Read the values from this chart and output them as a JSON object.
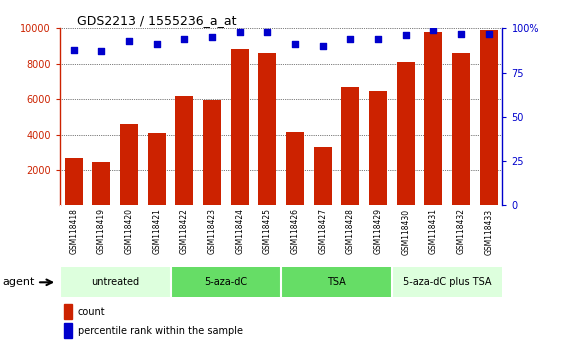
{
  "title": "GDS2213 / 1555236_a_at",
  "samples": [
    "GSM118418",
    "GSM118419",
    "GSM118420",
    "GSM118421",
    "GSM118422",
    "GSM118423",
    "GSM118424",
    "GSM118425",
    "GSM118426",
    "GSM118427",
    "GSM118428",
    "GSM118429",
    "GSM118430",
    "GSM118431",
    "GSM118432",
    "GSM118433"
  ],
  "counts": [
    2650,
    2450,
    4600,
    4100,
    6200,
    5950,
    8850,
    8600,
    4150,
    3300,
    6700,
    6450,
    8100,
    9800,
    8600,
    9900
  ],
  "percentile_ranks": [
    88,
    87,
    93,
    91,
    94,
    95,
    98,
    98,
    91,
    90,
    94,
    94,
    96,
    99,
    97,
    97
  ],
  "bar_color": "#cc2200",
  "dot_color": "#0000cc",
  "groups": [
    {
      "label": "untreated",
      "start": 0,
      "end": 4,
      "color": "#ddffdd"
    },
    {
      "label": "5-aza-dC",
      "start": 4,
      "end": 8,
      "color": "#66dd66"
    },
    {
      "label": "TSA",
      "start": 8,
      "end": 12,
      "color": "#66dd66"
    },
    {
      "label": "5-aza-dC plus TSA",
      "start": 12,
      "end": 16,
      "color": "#ddffdd"
    }
  ],
  "ylim_left": [
    0,
    10000
  ],
  "ylim_right": [
    0,
    100
  ],
  "yticks_left": [
    2000,
    4000,
    6000,
    8000,
    10000
  ],
  "ytick_labels_left": [
    "2000",
    "4000",
    "6000",
    "8000",
    "10000"
  ],
  "yticks_right": [
    0,
    25,
    50,
    75,
    100
  ],
  "ytick_labels_right": [
    "0",
    "25",
    "50",
    "75",
    "100%"
  ],
  "grid_color": "#000000",
  "bg_color": "#ffffff",
  "agent_label": "agent",
  "legend_count_label": "count",
  "legend_pct_label": "percentile rank within the sample",
  "xtick_bg": "#cccccc"
}
